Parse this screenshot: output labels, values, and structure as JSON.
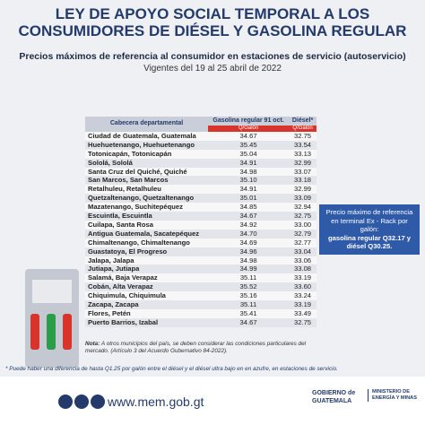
{
  "header": {
    "title_lines": [
      "LEY DE APOYO SOCIAL TEMPORAL A LOS",
      "CONSUMIDORES DE DIÉSEL Y GASOLINA REGULAR"
    ],
    "subtitle": "Precios máximos de referencia al consumidor en estaciones de servicio (autoservicio)",
    "validity": "Vigentes del 19 al 25 abril de 2022"
  },
  "table": {
    "columns": [
      "Cabecera departamental",
      "Gasolina regular 91 oct.",
      "Diésel*"
    ],
    "units": [
      "Q/Galón",
      "Q/Galón"
    ],
    "rows": [
      [
        "Ciudad de Guatemala, Guatemala",
        "34.67",
        "32.75"
      ],
      [
        "Huehuetenango, Huehuetenango",
        "35.45",
        "33.54"
      ],
      [
        "Totonicapán, Totonicapán",
        "35.04",
        "33.13"
      ],
      [
        "Sololá, Sololá",
        "34.91",
        "32.99"
      ],
      [
        "Santa Cruz del Quiché, Quiché",
        "34.98",
        "33.07"
      ],
      [
        "San Marcos, San Marcos",
        "35.10",
        "33.18"
      ],
      [
        "Retalhuleu, Retalhuleu",
        "34.91",
        "32.99"
      ],
      [
        "Quetzaltenango, Quetzaltenango",
        "35.01",
        "33.09"
      ],
      [
        "Mazatenango, Suchitepéquez",
        "34.85",
        "32.94"
      ],
      [
        "Escuintla, Escuintla",
        "34.67",
        "32.75"
      ],
      [
        "Cuilapa, Santa Rosa",
        "34.92",
        "33.00"
      ],
      [
        "Antigua Guatemala, Sacatepéquez",
        "34.70",
        "32.79"
      ],
      [
        "Chimaltenango, Chimaltenango",
        "34.69",
        "32.77"
      ],
      [
        "Guastatoya, El Progreso",
        "34.96",
        "33.04"
      ],
      [
        "Jalapa, Jalapa",
        "34.98",
        "33.06"
      ],
      [
        "Jutiapa, Jutiapa",
        "34.99",
        "33.08"
      ],
      [
        "Salamá, Baja Verapaz",
        "35.11",
        "33.19"
      ],
      [
        "Cobán, Alta Verapaz",
        "35.52",
        "33.60"
      ],
      [
        "Chiquimula, Chiquimula",
        "35.16",
        "33.24"
      ],
      [
        "Zacapa, Zacapa",
        "35.11",
        "33.19"
      ],
      [
        "Flores, Petén",
        "35.41",
        "33.49"
      ],
      [
        "Puerto Barrios, Izabal",
        "34.67",
        "32.75"
      ]
    ]
  },
  "reference_box": {
    "text": "Precio máximo de referencia en terminal Ex - Rack por galón:",
    "prices": "gasolina regular Q32.17 y diésel Q30.25."
  },
  "note": {
    "label": "Nota:",
    "text": "A otros municipios del país, se deben considerar las condiciones particulares del mercado. (Artículo 3 del Acuerdo Gubernativo 84-2022)."
  },
  "footnote": "* Puede haber una diferencia de hasta Q1.25 por galón entre el diésel y el diésel ultra bajo en en azufre, en estaciones de servicio.",
  "footer": {
    "website": "www.mem.gob.gt",
    "government": "GOBIERNO de GUATEMALA",
    "ministry": "MINISTERIO DE ENERGÍA Y MINAS"
  }
}
